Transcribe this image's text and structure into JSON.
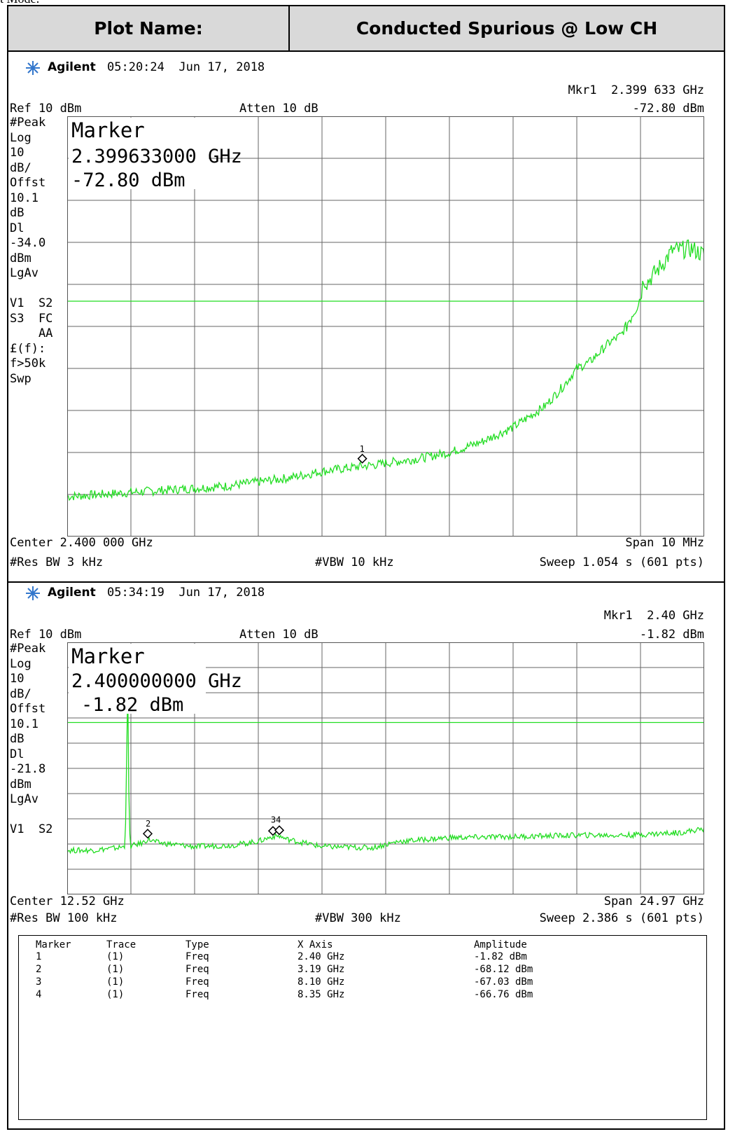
{
  "cut_text": "t Mode:",
  "header": {
    "plot_name_label": "Plot Name:",
    "plot_name_value": "Conducted Spurious @ Low CH"
  },
  "panels": [
    {
      "brand": "Agilent",
      "timestamp": "05:20:24  Jun 17, 2018",
      "marker_readout_freq": "Mkr1  2.399 633 GHz",
      "marker_readout_amp": "-72.80 dBm",
      "ref": "Ref 10 dBm",
      "atten": "Atten 10 dB",
      "side_labels": [
        "#Peak",
        "Log",
        "10",
        "dB/",
        "Offst",
        "10.1",
        "dB",
        "Dl",
        "-34.0",
        "dBm",
        "LgAv",
        "",
        "V1  S2",
        "S3  FC",
        "    AA",
        "£(f):",
        "f>50k",
        "Swp"
      ],
      "marker_box": {
        "title": "Marker",
        "freq": "2.399633000 GHz",
        "amp": "-72.80 dBm"
      },
      "center": "Center 2.400 000 GHz",
      "span": "Span 10 MHz",
      "res_bw": "#Res BW 3 kHz",
      "vbw": "#VBW 10 kHz",
      "sweep": "Sweep 1.054 s (601 pts)",
      "marker_labels": [
        "1"
      ]
    },
    {
      "brand": "Agilent",
      "timestamp": "05:34:19  Jun 17, 2018",
      "marker_readout_freq": "Mkr1  2.40 GHz",
      "marker_readout_amp": "-1.82 dBm",
      "ref": "Ref 10 dBm",
      "atten": "Atten 10 dB",
      "side_labels": [
        "#Peak",
        "Log",
        "10",
        "dB/",
        "Offst",
        "10.1",
        "dB",
        "Dl",
        "-21.8",
        "dBm",
        "LgAv",
        "",
        "V1  S2"
      ],
      "marker_box": {
        "title": "Marker",
        "freq": "2.400000000 GHz",
        "amp": "-1.82 dBm"
      },
      "center": "Center 12.52 GHz",
      "span": "Span 24.97 GHz",
      "res_bw": "#Res BW 100 kHz",
      "vbw": "#VBW 300 kHz",
      "sweep": "Sweep 2.386 s (601 pts)",
      "marker_labels": [
        "2",
        "34"
      ]
    }
  ],
  "marker_table": {
    "headers": [
      "Marker",
      "Trace",
      "Type",
      "X Axis",
      "Amplitude"
    ],
    "rows": [
      [
        "1",
        "(1)",
        "Freq",
        "2.40 GHz",
        "-1.82 dBm"
      ],
      [
        "2",
        "(1)",
        "Freq",
        "3.19 GHz",
        "-68.12 dBm"
      ],
      [
        "3",
        "(1)",
        "Freq",
        "8.10 GHz",
        "-67.03 dBm"
      ],
      [
        "4",
        "(1)",
        "Freq",
        "8.35 GHz",
        "-66.76 dBm"
      ]
    ]
  },
  "chart_data": [
    {
      "type": "line",
      "trace_color": "#00dd00",
      "x_center_ghz": 2.4,
      "x_span_mhz": 10,
      "xlim_ghz": [
        2.395,
        2.405
      ],
      "ylim_dbm": [
        -90,
        10
      ],
      "y_div_db": 10,
      "display_line_dbm": -34.0,
      "grid": true,
      "x": [
        2.395,
        2.3955,
        2.396,
        2.3965,
        2.397,
        2.3975,
        2.398,
        2.3985,
        2.399,
        2.3995,
        2.3999,
        2.4,
        2.4005,
        2.401,
        2.4015,
        2.402,
        2.4025,
        2.4028,
        2.403,
        2.4032,
        2.4035,
        2.4037,
        2.4038,
        2.4039,
        2.404,
        2.40405,
        2.4041,
        2.4043,
        2.4045,
        2.4048,
        2.405
      ],
      "y": [
        -80.5,
        -80,
        -79.5,
        -79,
        -78.5,
        -78,
        -77,
        -76,
        -74.5,
        -73.5,
        -72.8,
        -72.5,
        -71.5,
        -70,
        -67.5,
        -64,
        -59,
        -54,
        -50,
        -48.5,
        -44,
        -42,
        -39,
        -36,
        -33,
        -28.5,
        -29.5,
        -26,
        -22,
        -21.5,
        -23
      ],
      "markers": [
        {
          "id": 1,
          "x": 2.399633,
          "y": -72.8
        }
      ]
    },
    {
      "type": "line",
      "trace_color": "#00dd00",
      "x_center_ghz": 12.52,
      "x_span_ghz": 24.97,
      "xlim_ghz": [
        0.035,
        25.005
      ],
      "ylim_dbm": [
        -90,
        10
      ],
      "y_div_db": 10,
      "display_line_dbm": -21.8,
      "grid": true,
      "x": [
        0.035,
        1,
        2,
        2.3,
        2.35,
        2.4,
        2.45,
        2.5,
        3,
        3.19,
        3.6,
        5,
        6.5,
        7.5,
        8.1,
        8.35,
        8.6,
        10,
        12,
        13,
        15,
        18,
        20,
        22,
        23,
        24,
        25.005
      ],
      "y": [
        -72.5,
        -72.5,
        -71.5,
        -71,
        -50,
        -1.82,
        -50,
        -71,
        -69.5,
        -68.1,
        -69.5,
        -71,
        -70.5,
        -69,
        -67,
        -66.8,
        -68,
        -71,
        -71.5,
        -69,
        -67.5,
        -67,
        -66.5,
        -66.5,
        -66,
        -65.5,
        -64
      ],
      "markers": [
        {
          "id": 1,
          "x": 2.4,
          "y": -1.82
        },
        {
          "id": 2,
          "x": 3.19,
          "y": -68.12
        },
        {
          "id": 3,
          "x": 8.1,
          "y": -67.03
        },
        {
          "id": 4,
          "x": 8.35,
          "y": -66.76
        }
      ]
    }
  ]
}
